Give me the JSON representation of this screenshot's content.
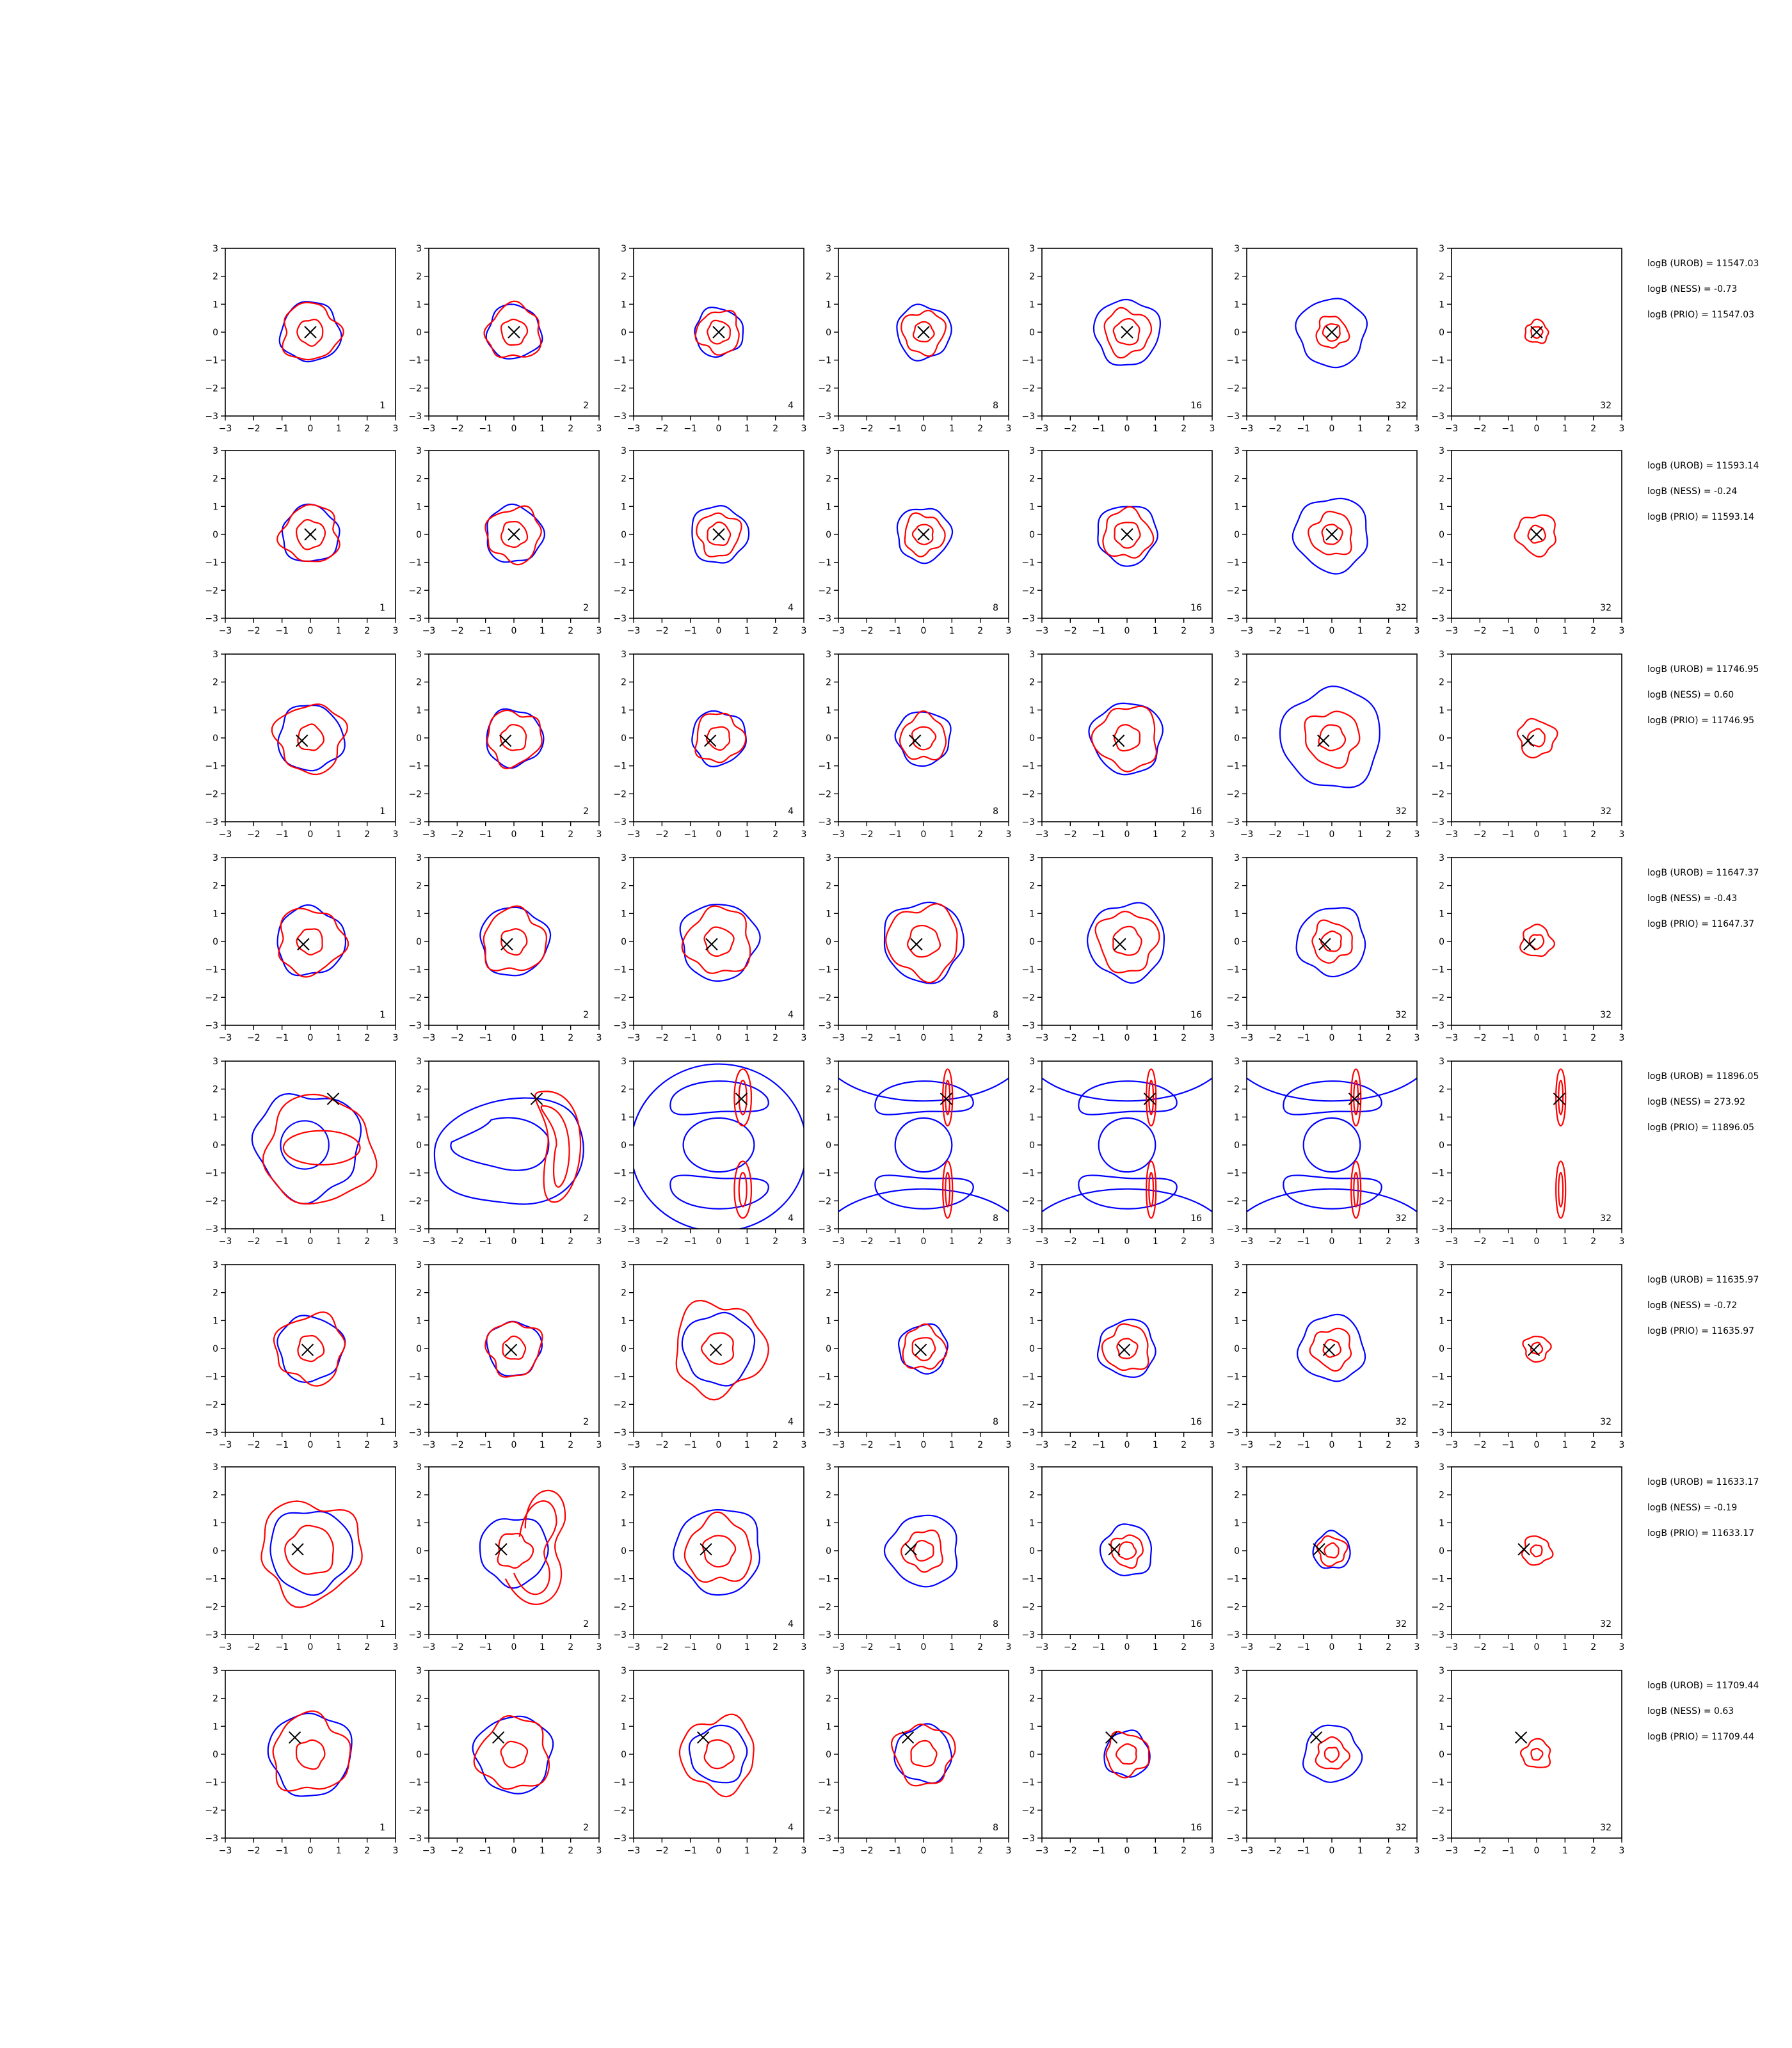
{
  "chart_data": {
    "type": "contour-grid",
    "axis": {
      "xlim": [
        -3,
        3
      ],
      "ylim": [
        -3,
        3
      ],
      "ticks": [
        -3,
        -2,
        -1,
        0,
        1,
        2,
        3
      ],
      "tick_labels": [
        "−3",
        "−2",
        "−1",
        "0",
        "1",
        "2",
        "3"
      ]
    },
    "colors": {
      "blue": "#0000ff",
      "red": "#ff0000",
      "marker": "#000000"
    },
    "columns": [
      "1",
      "2",
      "4",
      "8",
      "16",
      "32",
      "32"
    ],
    "rows": [
      {
        "marker": [
          0,
          0
        ],
        "logB": [
          "logB (UROB) = 11547.03",
          "logB (NESS) = -0.73",
          "logB (PRIO) = 11547.03"
        ],
        "panels": [
          {
            "blue": [
              1.05
            ],
            "red": [
              1.0,
              0.45
            ]
          },
          {
            "blue": [
              0.95
            ],
            "red": [
              0.95,
              0.45
            ]
          },
          {
            "blue": [
              0.85
            ],
            "red": [
              0.75,
              0.4
            ]
          },
          {
            "blue": [
              0.95
            ],
            "red": [
              0.75,
              0.35
            ]
          },
          {
            "blue": [
              1.15
            ],
            "red": [
              0.8,
              0.45
            ]
          },
          {
            "blue": [
              1.2
            ],
            "red": [
              0.55,
              0.3
            ]
          },
          {
            "blue": [],
            "red": [
              0.4,
              0.2
            ]
          }
        ]
      },
      {
        "marker": [
          0,
          0
        ],
        "logB": [
          "logB (UROB) = 11593.14",
          "logB (NESS) = -0.24",
          "logB (PRIO) = 11593.14"
        ],
        "panels": [
          {
            "blue": [
              1.0
            ],
            "red": [
              1.0,
              0.5
            ]
          },
          {
            "blue": [
              1.0
            ],
            "red": [
              0.95,
              0.45
            ]
          },
          {
            "blue": [
              1.0
            ],
            "red": [
              0.75,
              0.4
            ]
          },
          {
            "blue": [
              0.95
            ],
            "red": [
              0.7,
              0.35
            ]
          },
          {
            "blue": [
              1.05
            ],
            "red": [
              0.85,
              0.45
            ]
          },
          {
            "blue": [
              1.3
            ],
            "red": [
              0.75,
              0.35
            ]
          },
          {
            "blue": [],
            "red": [
              0.7,
              0.3
            ]
          }
        ]
      },
      {
        "marker": [
          -0.3,
          -0.1
        ],
        "logB": [
          "logB (UROB) = 11746.95",
          "logB (NESS) = 0.60",
          "logB (PRIO) = 11746.95"
        ],
        "panels": [
          {
            "blue": [
              1.15
            ],
            "red": [
              1.2,
              0.45
            ]
          },
          {
            "blue": [
              1.0
            ],
            "red": [
              0.95,
              0.45
            ]
          },
          {
            "blue": [
              0.95
            ],
            "red": [
              0.85,
              0.4
            ]
          },
          {
            "blue": [
              0.95
            ],
            "red": [
              0.8,
              0.4
            ]
          },
          {
            "blue": [
              1.25
            ],
            "red": [
              1.1,
              0.45
            ]
          },
          {
            "blue": [
              1.75
            ],
            "red": [
              0.95,
              0.45
            ]
          },
          {
            "blue": [],
            "red": [
              0.65,
              0.3
            ]
          }
        ]
      },
      {
        "marker": [
          -0.25,
          -0.1
        ],
        "logB": [
          "logB (UROB) = 11647.37",
          "logB (NESS) = -0.43",
          "logB (PRIO) = 11647.37"
        ],
        "panels": [
          {
            "blue": [
              1.2
            ],
            "red": [
              1.15,
              0.45
            ]
          },
          {
            "blue": [
              1.2
            ],
            "red": [
              1.1,
              0.45
            ]
          },
          {
            "blue": [
              1.35
            ],
            "red": [
              1.15,
              0.5
            ]
          },
          {
            "blue": [
              1.4
            ],
            "red": [
              1.25,
              0.55
            ]
          },
          {
            "blue": [
              1.35
            ],
            "red": [
              1.05,
              0.5
            ]
          },
          {
            "blue": [
              1.2
            ],
            "red": [
              0.7,
              0.35
            ]
          },
          {
            "blue": [],
            "red": [
              0.55,
              0.25
            ]
          }
        ]
      },
      {
        "marker": [
          0.8,
          1.65
        ],
        "logB": [
          "logB (UROB) = 11896.05",
          "logB (NESS) = 273.92",
          "logB (PRIO) = 11896.05"
        ],
        "panels": [
          {
            "blue": [],
            "red": []
          },
          {
            "blue": [],
            "red": []
          },
          {
            "blue": [],
            "red": []
          },
          {
            "blue": [],
            "red": []
          },
          {
            "blue": [],
            "red": []
          },
          {
            "blue": [],
            "red": []
          },
          {
            "blue": [],
            "red": []
          }
        ]
      },
      {
        "marker": [
          -0.1,
          -0.05
        ],
        "logB": [
          "logB (UROB) = 11635.97",
          "logB (NESS) = -0.72",
          "logB (PRIO) = 11635.97"
        ],
        "panels": [
          {
            "blue": [
              1.15
            ],
            "red": [
              1.2,
              0.45
            ]
          },
          {
            "blue": [
              0.95
            ],
            "red": [
              0.95,
              0.4
            ]
          },
          {
            "blue": [
              1.25
            ],
            "red": [
              1.6,
              0.55
            ]
          },
          {
            "blue": [
              0.85
            ],
            "red": [
              0.75,
              0.4
            ]
          },
          {
            "blue": [
              1.0
            ],
            "red": [
              0.8,
              0.35
            ]
          },
          {
            "blue": [
              1.15
            ],
            "red": [
              0.7,
              0.3
            ]
          },
          {
            "blue": [],
            "red": [
              0.45,
              0.2
            ]
          }
        ]
      },
      {
        "marker": [
          -0.45,
          0.05
        ],
        "logB": [
          "logB (UROB) = 11633.17",
          "logB (NESS) = -0.19",
          "logB (PRIO) = 11633.17"
        ],
        "panels": [
          {
            "blue": [
              1.45
            ],
            "red": [
              1.75,
              0.85
            ]
          },
          {
            "blue": [
              1.2
            ],
            "red": [
              0.6
            ]
          },
          {
            "blue": [
              1.5
            ],
            "red": [
              1.15,
              0.55
            ]
          },
          {
            "blue": [
              1.25
            ],
            "red": [
              0.7,
              0.35
            ]
          },
          {
            "blue": [
              0.9
            ],
            "red": [
              0.55,
              0.3
            ]
          },
          {
            "blue": [
              0.65
            ],
            "red": [
              0.5,
              0.25
            ]
          },
          {
            "blue": [],
            "red": [
              0.5,
              0.2
            ]
          }
        ]
      },
      {
        "marker": [
          -0.55,
          0.6
        ],
        "logB": [
          "logB (UROB) = 11709.44",
          "logB (NESS) = 0.63",
          "logB (PRIO) = 11709.44"
        ],
        "panels": [
          {
            "blue": [
              1.45
            ],
            "red": [
              1.35,
              0.5
            ]
          },
          {
            "blue": [
              1.35
            ],
            "red": [
              1.25,
              0.45
            ]
          },
          {
            "blue": [
              1.0
            ],
            "red": [
              1.3,
              0.5
            ]
          },
          {
            "blue": [
              1.0
            ],
            "red": [
              1.05,
              0.45
            ]
          },
          {
            "blue": [
              0.8
            ],
            "red": [
              0.75,
              0.35
            ]
          },
          {
            "blue": [
              1.0
            ],
            "red": [
              0.55,
              0.25
            ]
          },
          {
            "blue": [],
            "red": [
              0.5,
              0.2
            ]
          }
        ]
      }
    ]
  }
}
